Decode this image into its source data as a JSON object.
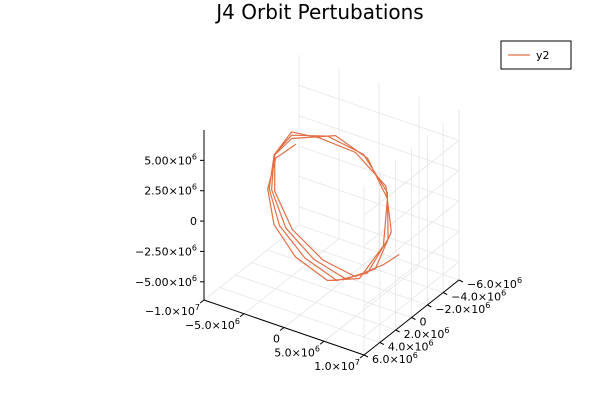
{
  "chart_data": {
    "type": "line",
    "projection": "3d",
    "title": "J4 Orbit Pertubations",
    "legend": {
      "placement": "top-right",
      "entries": [
        "y2"
      ]
    },
    "series_color": "#e26f46",
    "grid": true,
    "axes": {
      "x": {
        "range": [
          -10000000,
          10000000
        ],
        "ticks": [
          {
            "value": -10000000,
            "mantissa": "−1.0×10",
            "exp": "7"
          },
          {
            "value": -5000000,
            "mantissa": "−5.0×10",
            "exp": "6"
          },
          {
            "value": 0,
            "mantissa": "0",
            "exp": ""
          },
          {
            "value": 5000000,
            "mantissa": "5.0×10",
            "exp": "6"
          },
          {
            "value": 10000000,
            "mantissa": "1.0×10",
            "exp": "7"
          }
        ]
      },
      "y": {
        "range": [
          -6000000,
          6000000
        ],
        "ticks": [
          {
            "value": -6000000,
            "mantissa": "−6.0×10",
            "exp": "6"
          },
          {
            "value": -4000000,
            "mantissa": "−4.0×10",
            "exp": "6"
          },
          {
            "value": -2000000,
            "mantissa": "−2.0×10",
            "exp": "6"
          },
          {
            "value": 0,
            "mantissa": "0",
            "exp": ""
          },
          {
            "value": 2000000,
            "mantissa": "2.0×10",
            "exp": "6"
          },
          {
            "value": 4000000,
            "mantissa": "4.0×10",
            "exp": "6"
          },
          {
            "value": 6000000,
            "mantissa": "6.0×10",
            "exp": "6"
          }
        ]
      },
      "z": {
        "range": [
          -6500000,
          7500000
        ],
        "ticks": [
          {
            "value": -5000000,
            "mantissa": "−5.00×10",
            "exp": "6"
          },
          {
            "value": -2500000,
            "mantissa": "−2.50×10",
            "exp": "6"
          },
          {
            "value": 0,
            "mantissa": "0",
            "exp": ""
          },
          {
            "value": 2500000,
            "mantissa": "2.50×10",
            "exp": "6"
          },
          {
            "value": 5000000,
            "mantissa": "5.00×10",
            "exp": "6"
          }
        ]
      }
    },
    "series": [
      {
        "name": "y2",
        "points": [
          [
            -1500000,
            3000000,
            6700000
          ],
          [
            -4000000,
            3000000,
            5000000
          ],
          [
            -6000000,
            2000000,
            1500000
          ],
          [
            -6200000,
            1000000,
            -2000000
          ],
          [
            -4500000,
            0,
            -4800000
          ],
          [
            -1000000,
            -500000,
            -6200000
          ],
          [
            2500000,
            -1000000,
            -5500000
          ],
          [
            5000000,
            -1500000,
            -2500000
          ],
          [
            5500000,
            -1500000,
            1500000
          ],
          [
            4000000,
            -500000,
            5000000
          ],
          [
            1000000,
            500000,
            6700000
          ],
          [
            -2500000,
            2500000,
            6700000
          ],
          [
            -4700000,
            2500000,
            4800000
          ],
          [
            -6300000,
            1500000,
            1200000
          ],
          [
            -6000000,
            500000,
            -2300000
          ],
          [
            -3800000,
            -500000,
            -5000000
          ],
          [
            -300000,
            -1000000,
            -6300000
          ],
          [
            3000000,
            -1500000,
            -5200000
          ],
          [
            5300000,
            -1800000,
            -2000000
          ],
          [
            5500000,
            -1500000,
            2000000
          ],
          [
            3500000,
            -500000,
            5200000
          ],
          [
            500000,
            1000000,
            6800000
          ],
          [
            -3000000,
            2000000,
            6600000
          ],
          [
            -5200000,
            2000000,
            4500000
          ],
          [
            -6500000,
            1000000,
            800000
          ],
          [
            -5700000,
            0,
            -2700000
          ],
          [
            -3200000,
            -1000000,
            -5200000
          ],
          [
            300000,
            -1500000,
            -6300000
          ],
          [
            3500000,
            -2000000,
            -5000000
          ],
          [
            5500000,
            -2000000,
            -1500000
          ],
          [
            5300000,
            -1500000,
            2500000
          ],
          [
            3000000,
            0,
            5500000
          ],
          [
            0,
            1500000,
            6800000
          ],
          [
            -3500000,
            1500000,
            6500000
          ],
          [
            -5600000,
            1500000,
            4200000
          ],
          [
            -6600000,
            500000,
            400000
          ],
          [
            -5400000,
            -500000,
            -3000000
          ],
          [
            -2500000,
            -1500000,
            -5400000
          ],
          [
            1000000,
            -2000000,
            -6200000
          ],
          [
            4000000,
            -2500000,
            -4800000
          ],
          [
            6000000,
            -2500000,
            -3500000
          ]
        ]
      }
    ]
  }
}
